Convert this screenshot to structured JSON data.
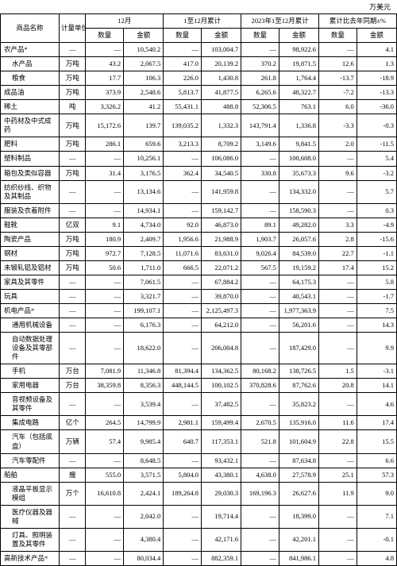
{
  "top_unit": "万美元",
  "headers": {
    "name": "商品名称",
    "unit": "计量单位",
    "dec": "12月",
    "ytd": "1至12月累计",
    "prev": "2023年1至12月累计",
    "yoy": "累计比去年同期±%",
    "qty": "数量",
    "amt": "金额"
  },
  "rows": [
    {
      "name": "农产品*",
      "indent": 0,
      "unit": "—",
      "c": [
        "—",
        "10,540.2",
        "—",
        "103,004.7",
        "—",
        "98,922.6",
        "—",
        "4.1"
      ]
    },
    {
      "name": "水产品",
      "indent": 1,
      "unit": "万吨",
      "c": [
        "43.2",
        "2,067.5",
        "417.0",
        "20,139.2",
        "370.2",
        "19,871.5",
        "12.6",
        "1.3"
      ]
    },
    {
      "name": "粮食",
      "indent": 1,
      "unit": "万吨",
      "c": [
        "17.7",
        "106.3",
        "226.0",
        "1,430.8",
        "261.8",
        "1,764.4",
        "-13.7",
        "-18.9"
      ]
    },
    {
      "name": "成品油",
      "indent": 0,
      "unit": "万吨",
      "c": [
        "373.9",
        "2,548.6",
        "5,813.7",
        "41,877.5",
        "6,265.6",
        "48,322.7",
        "-7.2",
        "-13.3"
      ]
    },
    {
      "name": "稀土",
      "indent": 0,
      "unit": "吨",
      "c": [
        "3,326.2",
        "41.2",
        "55,431.1",
        "488.8",
        "52,306.5",
        "763.1",
        "6.0",
        "-36.0"
      ]
    },
    {
      "name": "中药材及中式成药",
      "indent": 0,
      "unit": "万吨",
      "c": [
        "15,172.6",
        "139.7",
        "139,035.2",
        "1,332.3",
        "143,791.4",
        "1,336.8",
        "-3.3",
        "-0.3"
      ]
    },
    {
      "name": "肥料",
      "indent": 0,
      "unit": "万吨",
      "c": [
        "286.1",
        "659.6",
        "3,213.3",
        "8,709.2",
        "3,149.6",
        "9,841.5",
        "2.0",
        "-11.5"
      ]
    },
    {
      "name": "塑料制品",
      "indent": 0,
      "unit": "—",
      "c": [
        "—",
        "10,256.1",
        "—",
        "106,086.0",
        "—",
        "100,608.0",
        "—",
        "5.4"
      ]
    },
    {
      "name": "箱包及类似容器",
      "indent": 0,
      "unit": "万吨",
      "c": [
        "31.4",
        "3,176.5",
        "362.4",
        "34,540.5",
        "330.8",
        "35,673.3",
        "9.6",
        "-3.2"
      ]
    },
    {
      "name": "纺织纱线、织物及其制品",
      "indent": 0,
      "unit": "—",
      "c": [
        "—",
        "13,134.6",
        "—",
        "141,959.8",
        "—",
        "134,332.0",
        "—",
        "5.7"
      ]
    },
    {
      "name": "服装及衣着附件",
      "indent": 0,
      "unit": "—",
      "c": [
        "—",
        "14,934.1",
        "—",
        "159,142.7",
        "—",
        "158,590.3",
        "—",
        "0.3"
      ]
    },
    {
      "name": "鞋靴",
      "indent": 0,
      "unit": "亿双",
      "c": [
        "9.1",
        "4,734.0",
        "92.0",
        "46,873.0",
        "89.1",
        "49,282.0",
        "3.3",
        "-4.9"
      ]
    },
    {
      "name": "陶瓷产品",
      "indent": 0,
      "unit": "万吨",
      "c": [
        "180.9",
        "2,409.7",
        "1,956.6",
        "21,988.9",
        "1,903.7",
        "26,057.6",
        "2.8",
        "-15.6"
      ]
    },
    {
      "name": "钢材",
      "indent": 0,
      "unit": "万吨",
      "c": [
        "972.7",
        "7,128.5",
        "11,071.6",
        "83,631.0",
        "9,026.4",
        "84,539.0",
        "22.7",
        "-1.1"
      ]
    },
    {
      "name": "未锻轧铝及铝材",
      "indent": 0,
      "unit": "万吨",
      "c": [
        "50.6",
        "1,711.0",
        "666.5",
        "22,071.2",
        "567.5",
        "19,159.2",
        "17.4",
        "15.2"
      ]
    },
    {
      "name": "家具及其零件",
      "indent": 0,
      "unit": "—",
      "c": [
        "—",
        "7,061.5",
        "—",
        "67,884.2",
        "—",
        "64,175.3",
        "—",
        "5.8"
      ]
    },
    {
      "name": "玩具",
      "indent": 0,
      "unit": "—",
      "c": [
        "—",
        "3,321.7",
        "—",
        "39,870.0",
        "—",
        "40,543.1",
        "—",
        "-1.7"
      ]
    },
    {
      "name": "机电产品*",
      "indent": 0,
      "unit": "—",
      "c": [
        "—",
        "199,107.1",
        "—",
        "2,125,497.3",
        "—",
        "1,977,363.9",
        "—",
        "7.5"
      ]
    },
    {
      "name": "通用机械设备",
      "indent": 1,
      "unit": "—",
      "c": [
        "—",
        "6,176.3",
        "—",
        "64,212.0",
        "—",
        "56,201.6",
        "—",
        "14.3"
      ]
    },
    {
      "name": "自动数据处理设备及其零部件",
      "indent": 1,
      "unit": "—",
      "c": [
        "—",
        "18,622.0",
        "—",
        "206,004.8",
        "—",
        "187,429.0",
        "—",
        "9.9"
      ]
    },
    {
      "name": "手机",
      "indent": 1,
      "unit": "万台",
      "c": [
        "7,081.9",
        "11,346.8",
        "81,394.4",
        "134,362.5",
        "80,168.2",
        "138,726.5",
        "1.5",
        "-3.1"
      ]
    },
    {
      "name": "家用电器",
      "indent": 1,
      "unit": "万台",
      "c": [
        "38,359.8",
        "8,356.3",
        "448,144.5",
        "100,102.5",
        "370,828.6",
        "87,762.6",
        "20.8",
        "14.1"
      ]
    },
    {
      "name": "音视频设备及其零件",
      "indent": 1,
      "unit": "—",
      "c": [
        "—",
        "3,539.4",
        "—",
        "37,482.5",
        "—",
        "35,823.2",
        "—",
        "4.6"
      ]
    },
    {
      "name": "集成电路",
      "indent": 1,
      "unit": "亿个",
      "c": [
        "264.5",
        "14,799.9",
        "2,981.1",
        "159,499.4",
        "2,670.5",
        "135,916.0",
        "11.6",
        "17.4"
      ]
    },
    {
      "name": "汽车（包括底盘）",
      "indent": 1,
      "unit": "万辆",
      "c": [
        "57.4",
        "9,985.4",
        "640.7",
        "117,353.1",
        "521.8",
        "101,604.9",
        "22.8",
        "15.5"
      ]
    },
    {
      "name": "汽车零配件",
      "indent": 1,
      "unit": "—",
      "c": [
        "—",
        "8,648.5",
        "—",
        "93,432.1",
        "—",
        "87,634.8",
        "—",
        "6.6"
      ]
    },
    {
      "name": "船舶",
      "indent": 0,
      "unit": "艘",
      "c": [
        "555.0",
        "3,571.5",
        "5,804.0",
        "43,380.1",
        "4,638.0",
        "27,578.9",
        "25.1",
        "57.3"
      ]
    },
    {
      "name": "液晶平板显示模组",
      "indent": 1,
      "unit": "万个",
      "c": [
        "16,610.8",
        "2,424.1",
        "189,264.8",
        "29,030.3",
        "169,196.3",
        "26,627.6",
        "11.9",
        "9.0"
      ]
    },
    {
      "name": "医疗仪器及器械",
      "indent": 1,
      "unit": "—",
      "c": [
        "—",
        "2,042.0",
        "—",
        "19,714.4",
        "—",
        "18,399.0",
        "—",
        "7.1"
      ]
    },
    {
      "name": "灯具、照明装置及其零件",
      "indent": 1,
      "unit": "—",
      "c": [
        "—",
        "4,380.4",
        "—",
        "42,171.6",
        "—",
        "42,201.1",
        "—",
        "-0.1"
      ]
    },
    {
      "name": "高新技术产品*",
      "indent": 0,
      "unit": "—",
      "c": [
        "—",
        "80,034.4",
        "—",
        "882,359.1",
        "—",
        "841,986.1",
        "—",
        "4.8"
      ]
    }
  ]
}
